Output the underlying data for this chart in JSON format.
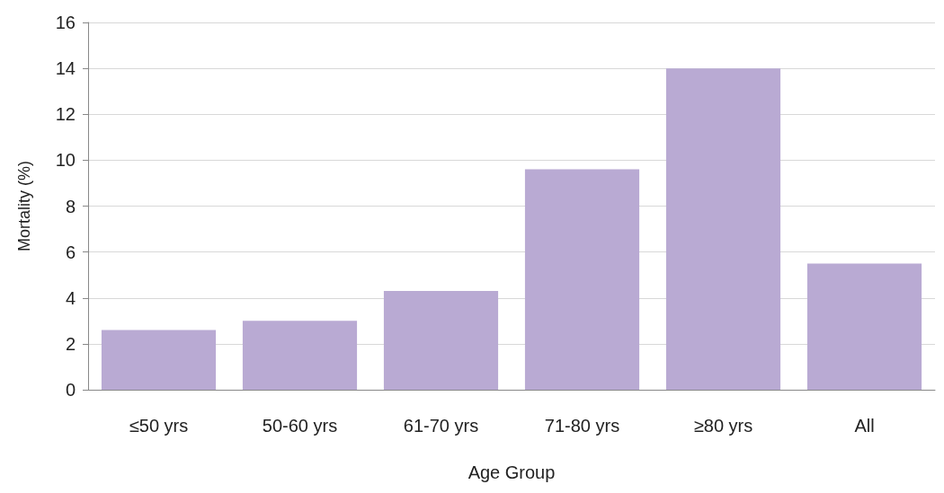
{
  "chart_data": {
    "type": "bar",
    "xlabel": "Age Group",
    "ylabel": "Mortality (%)",
    "categories": [
      "≤50 yrs",
      "50-60 yrs",
      "61-70 yrs",
      "71-80 yrs",
      "≥80 yrs",
      "All"
    ],
    "values": [
      2.6,
      3.0,
      4.3,
      9.6,
      14.0,
      5.5
    ],
    "color": "#b9aad3",
    "ylim": [
      0,
      16
    ],
    "yticks": [
      0,
      2,
      4,
      6,
      8,
      10,
      12,
      14,
      16
    ],
    "grid": "y"
  }
}
